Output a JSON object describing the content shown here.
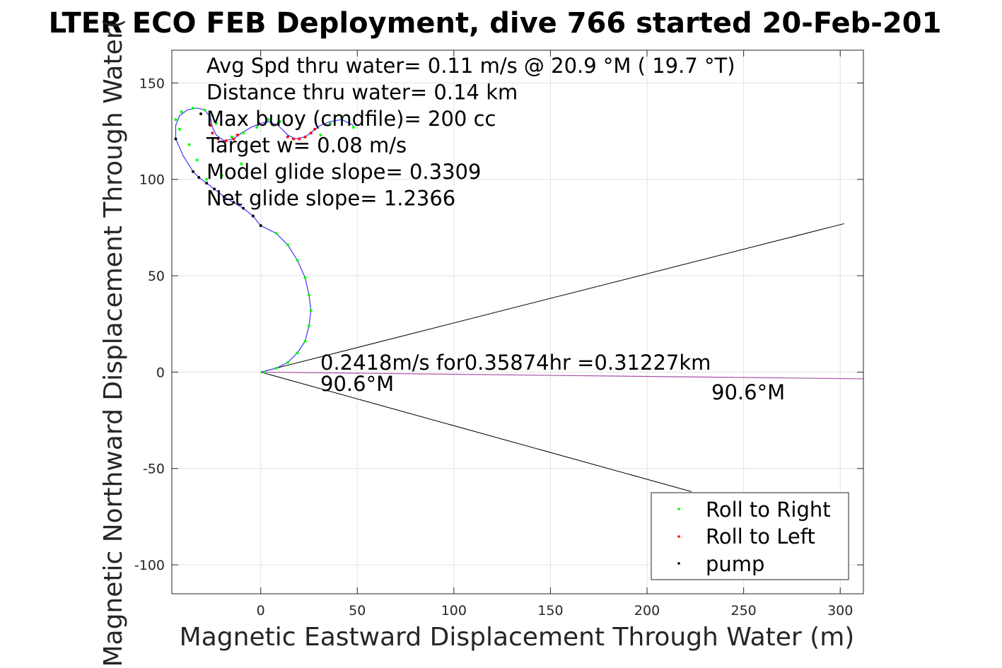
{
  "chart_data": {
    "type": "scatter",
    "title": "LTER ECO FEB Deployment, dive 766 started 20-Feb-201",
    "xlabel": "Magnetic Eastward Displacement Through Water (m)",
    "ylabel": "Magnetic Northward Displacement Through Water(",
    "xlim": [
      -46,
      312
    ],
    "ylim": [
      -115,
      167
    ],
    "xticks": [
      0,
      50,
      100,
      150,
      200,
      250,
      300
    ],
    "yticks": [
      -100,
      -50,
      0,
      50,
      100,
      150
    ],
    "xtick_labels": [
      "0",
      "50",
      "100",
      "150",
      "200",
      "250",
      "300"
    ],
    "ytick_labels": [
      "-100",
      "-50",
      "0",
      "50",
      "100",
      "150"
    ],
    "grid": true,
    "legend_position": "bottom-right",
    "annotations": [
      "Avg Spd thru water=  0.11 m/s @  20.9 °M ( 19.7 °T)",
      "Distance thru water=  0.14 km",
      "Max buoy (cmdfile)= 200 cc",
      "Target w= 0.08 m/s",
      "Model glide slope= 0.3309",
      "Net glide slope= 1.2366"
    ],
    "current_label_line1": "0.2418m/s for0.35874hr =0.31227km",
    "current_label_line2": "90.6°M",
    "current_end_label": "90.6°M",
    "series": [
      {
        "name": "Roll to Right",
        "color": "#00ff00",
        "points": [
          [
            0,
            76
          ],
          [
            8,
            72
          ],
          [
            14,
            66
          ],
          [
            19,
            58
          ],
          [
            23,
            49
          ],
          [
            25,
            40
          ],
          [
            26,
            32
          ],
          [
            25,
            24
          ],
          [
            23,
            16
          ],
          [
            19,
            10
          ],
          [
            14,
            5
          ],
          [
            8,
            2
          ],
          [
            2,
            0
          ],
          [
            -10,
            108
          ],
          [
            -20,
            102
          ],
          [
            -28,
            100
          ],
          [
            -33,
            110
          ],
          [
            -37,
            118
          ],
          [
            -42,
            126
          ],
          [
            -44,
            131
          ],
          [
            -41,
            135
          ],
          [
            -35,
            137
          ],
          [
            -29,
            136
          ],
          [
            -25,
            133
          ],
          [
            -23,
            129
          ],
          [
            -15,
            122
          ],
          [
            -9,
            124
          ],
          [
            -2,
            127
          ],
          [
            4,
            131
          ],
          [
            10,
            130
          ],
          [
            31,
            123
          ],
          [
            36,
            129
          ],
          [
            42,
            132
          ],
          [
            48,
            127
          ]
        ]
      },
      {
        "name": "Roll to Left",
        "color": "#ff0000",
        "points": [
          [
            -26,
            128
          ],
          [
            -25,
            124
          ],
          [
            -22,
            121
          ],
          [
            -18,
            120
          ],
          [
            -14,
            121
          ],
          [
            -12,
            123
          ],
          [
            14,
            122
          ],
          [
            17,
            121
          ],
          [
            20,
            121
          ],
          [
            23,
            122
          ],
          [
            26,
            124
          ],
          [
            28,
            126
          ]
        ]
      },
      {
        "name": "pump",
        "color": "#000000",
        "points": [
          [
            -44,
            121
          ],
          [
            -35,
            104
          ],
          [
            -32,
            101
          ],
          [
            -28,
            98
          ],
          [
            -24,
            95
          ],
          [
            -19,
            91
          ],
          [
            -14,
            88
          ],
          [
            -9,
            85
          ],
          [
            -4,
            81
          ],
          [
            0,
            76
          ],
          [
            -31,
            134
          ]
        ]
      }
    ],
    "track": [
      [
        0,
        0
      ],
      [
        8,
        2
      ],
      [
        14,
        5
      ],
      [
        19,
        10
      ],
      [
        23,
        16
      ],
      [
        25,
        24
      ],
      [
        26,
        32
      ],
      [
        25,
        40
      ],
      [
        23,
        49
      ],
      [
        19,
        58
      ],
      [
        14,
        66
      ],
      [
        8,
        72
      ],
      [
        0,
        76
      ],
      [
        -4,
        81
      ],
      [
        -9,
        85
      ],
      [
        -14,
        88
      ],
      [
        -19,
        91
      ],
      [
        -24,
        95
      ],
      [
        -28,
        98
      ],
      [
        -32,
        101
      ],
      [
        -35,
        104
      ],
      [
        -40,
        112
      ],
      [
        -44,
        121
      ],
      [
        -44,
        128
      ],
      [
        -42,
        133
      ],
      [
        -38,
        136
      ],
      [
        -33,
        137
      ],
      [
        -29,
        136
      ],
      [
        -26,
        132
      ],
      [
        -25,
        127
      ],
      [
        -23,
        123
      ],
      [
        -19,
        120
      ],
      [
        -14,
        121
      ],
      [
        -10,
        124
      ],
      [
        -5,
        127
      ],
      [
        0,
        129
      ],
      [
        4,
        130
      ],
      [
        9,
        128
      ],
      [
        14,
        123
      ],
      [
        18,
        121
      ],
      [
        23,
        122
      ],
      [
        27,
        125
      ],
      [
        31,
        128
      ],
      [
        36,
        130
      ],
      [
        42,
        131
      ],
      [
        48,
        128
      ]
    ],
    "current_vector": [
      [
        0,
        0
      ],
      [
        312,
        -3.5
      ]
    ],
    "cone_lines": [
      [
        [
          0,
          0
        ],
        [
          302,
          77
        ]
      ],
      [
        [
          0,
          0
        ],
        [
          223,
          -62
        ]
      ]
    ]
  }
}
